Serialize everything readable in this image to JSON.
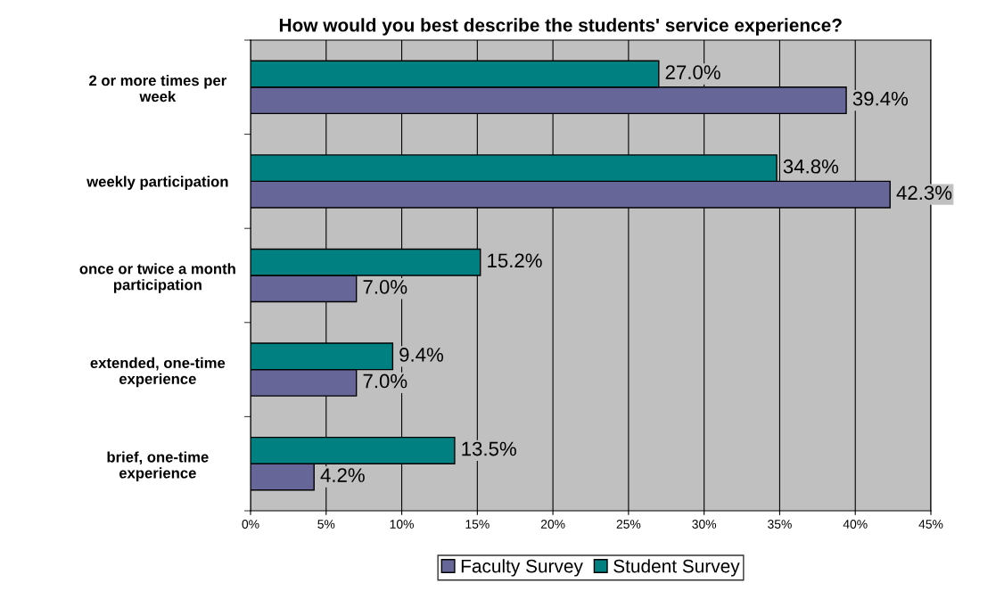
{
  "chart_data": {
    "type": "bar",
    "orientation": "horizontal",
    "title": "How would you best describe the students' service experience?",
    "categories": [
      "2 or more times per\nweek",
      "weekly participation",
      "once or twice a month\nparticipation",
      "extended, one-time\nexperience",
      "brief, one-time\nexperience"
    ],
    "series": [
      {
        "name": "Faculty Survey",
        "color": "#666699",
        "values": [
          39.4,
          42.3,
          7.0,
          7.0,
          4.2
        ],
        "value_labels": [
          "39.4%",
          "42.3%",
          "7.0%",
          "7.0%",
          "4.2%"
        ]
      },
      {
        "name": "Student Survey",
        "color": "#008080",
        "values": [
          27.0,
          34.8,
          15.2,
          9.4,
          13.5
        ],
        "value_labels": [
          "27.0%",
          "34.8%",
          "15.2%",
          "9.4%",
          "13.5%"
        ]
      }
    ],
    "xlim": [
      0,
      45
    ],
    "xticks": [
      {
        "value": 0,
        "label": "0%"
      },
      {
        "value": 5,
        "label": "5%"
      },
      {
        "value": 10,
        "label": "10%"
      },
      {
        "value": 15,
        "label": "15%"
      },
      {
        "value": 20,
        "label": "20%"
      },
      {
        "value": 25,
        "label": "25%"
      },
      {
        "value": 30,
        "label": "30%"
      },
      {
        "value": 35,
        "label": "35%"
      },
      {
        "value": 40,
        "label": "40%"
      },
      {
        "value": 45,
        "label": "45%"
      }
    ],
    "grid": "x",
    "legend": "bottom"
  }
}
